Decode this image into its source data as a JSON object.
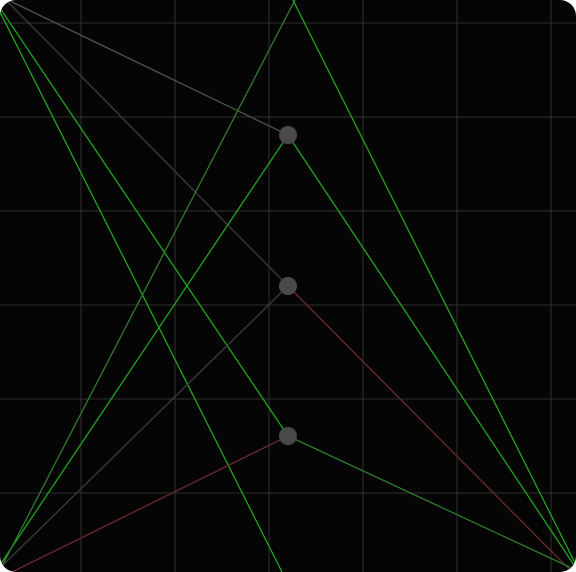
{
  "canvas": {
    "title": "",
    "background": "#050505",
    "grid_color": "#2e2e2e",
    "node_color": "#4a4a4a",
    "edge_colors": {
      "green": "#1fa61f",
      "dark_green": "#2f7a2f",
      "gray": "#3c3c3c",
      "slate": "#4a5550",
      "red": "#6a2a2a"
    }
  },
  "nodes": [
    {
      "id": "node-top",
      "label": ""
    },
    {
      "id": "node-middle",
      "label": ""
    },
    {
      "id": "node-bottom",
      "label": ""
    }
  ],
  "edges": [
    {
      "id": "edge-1",
      "color_key": "slate"
    },
    {
      "id": "edge-2",
      "color_key": "gray"
    },
    {
      "id": "edge-3",
      "color_key": "green"
    },
    {
      "id": "edge-4",
      "color_key": "green"
    },
    {
      "id": "edge-5",
      "color_key": "green"
    },
    {
      "id": "edge-6",
      "color_key": "dark_green"
    },
    {
      "id": "edge-7",
      "color_key": "green"
    },
    {
      "id": "edge-8",
      "color_key": "gray"
    },
    {
      "id": "edge-9",
      "color_key": "red"
    },
    {
      "id": "edge-10",
      "color_key": "green"
    },
    {
      "id": "edge-11",
      "color_key": "red"
    },
    {
      "id": "edge-12",
      "color_key": "dark_green"
    },
    {
      "id": "edge-13",
      "color_key": "green"
    }
  ]
}
